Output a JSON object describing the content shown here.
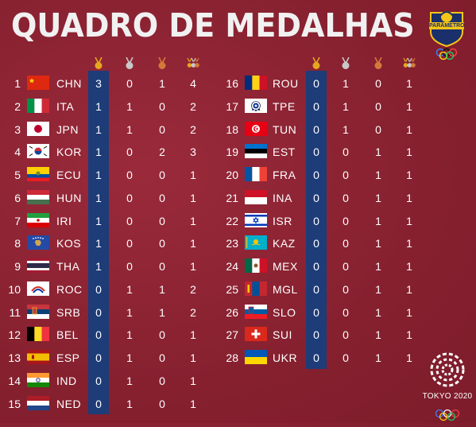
{
  "title": "QUADRO DE MEDALHAS",
  "logo": {
    "text": "PARÂMETRO"
  },
  "footer": {
    "event": "TOKYO 2020"
  },
  "colors": {
    "background": "#8e2434",
    "gold_highlight": "#1d3c78"
  },
  "columns": [
    "gold-icon",
    "silver-icon",
    "bronze-icon",
    "total-icon"
  ],
  "left_rows": [
    {
      "rank": "1",
      "code": "CHN",
      "gold": "3",
      "silver": "0",
      "bronze": "1",
      "total": "4",
      "flag": "chn"
    },
    {
      "rank": "2",
      "code": "ITA",
      "gold": "1",
      "silver": "1",
      "bronze": "0",
      "total": "2",
      "flag": "ita"
    },
    {
      "rank": "3",
      "code": "JPN",
      "gold": "1",
      "silver": "1",
      "bronze": "0",
      "total": "2",
      "flag": "jpn"
    },
    {
      "rank": "4",
      "code": "KOR",
      "gold": "1",
      "silver": "0",
      "bronze": "2",
      "total": "3",
      "flag": "kor"
    },
    {
      "rank": "5",
      "code": "ECU",
      "gold": "1",
      "silver": "0",
      "bronze": "0",
      "total": "1",
      "flag": "ecu"
    },
    {
      "rank": "6",
      "code": "HUN",
      "gold": "1",
      "silver": "0",
      "bronze": "0",
      "total": "1",
      "flag": "hun"
    },
    {
      "rank": "7",
      "code": "IRI",
      "gold": "1",
      "silver": "0",
      "bronze": "0",
      "total": "1",
      "flag": "iri"
    },
    {
      "rank": "8",
      "code": "KOS",
      "gold": "1",
      "silver": "0",
      "bronze": "0",
      "total": "1",
      "flag": "kos"
    },
    {
      "rank": "9",
      "code": "THA",
      "gold": "1",
      "silver": "0",
      "bronze": "0",
      "total": "1",
      "flag": "tha"
    },
    {
      "rank": "10",
      "code": "ROC",
      "gold": "0",
      "silver": "1",
      "bronze": "1",
      "total": "2",
      "flag": "roc"
    },
    {
      "rank": "11",
      "code": "SRB",
      "gold": "0",
      "silver": "1",
      "bronze": "1",
      "total": "2",
      "flag": "srb"
    },
    {
      "rank": "12",
      "code": "BEL",
      "gold": "0",
      "silver": "1",
      "bronze": "0",
      "total": "1",
      "flag": "bel"
    },
    {
      "rank": "13",
      "code": "ESP",
      "gold": "0",
      "silver": "1",
      "bronze": "0",
      "total": "1",
      "flag": "esp"
    },
    {
      "rank": "14",
      "code": "IND",
      "gold": "0",
      "silver": "1",
      "bronze": "0",
      "total": "1",
      "flag": "ind"
    },
    {
      "rank": "15",
      "code": "NED",
      "gold": "0",
      "silver": "1",
      "bronze": "0",
      "total": "1",
      "flag": "ned"
    }
  ],
  "right_rows": [
    {
      "rank": "16",
      "code": "ROU",
      "gold": "0",
      "silver": "1",
      "bronze": "0",
      "total": "1",
      "flag": "rou"
    },
    {
      "rank": "17",
      "code": "TPE",
      "gold": "0",
      "silver": "1",
      "bronze": "0",
      "total": "1",
      "flag": "tpe"
    },
    {
      "rank": "18",
      "code": "TUN",
      "gold": "0",
      "silver": "1",
      "bronze": "0",
      "total": "1",
      "flag": "tun"
    },
    {
      "rank": "19",
      "code": "EST",
      "gold": "0",
      "silver": "0",
      "bronze": "1",
      "total": "1",
      "flag": "est"
    },
    {
      "rank": "20",
      "code": "FRA",
      "gold": "0",
      "silver": "0",
      "bronze": "1",
      "total": "1",
      "flag": "fra"
    },
    {
      "rank": "21",
      "code": "INA",
      "gold": "0",
      "silver": "0",
      "bronze": "1",
      "total": "1",
      "flag": "ina"
    },
    {
      "rank": "22",
      "code": "ISR",
      "gold": "0",
      "silver": "0",
      "bronze": "1",
      "total": "1",
      "flag": "isr"
    },
    {
      "rank": "23",
      "code": "KAZ",
      "gold": "0",
      "silver": "0",
      "bronze": "1",
      "total": "1",
      "flag": "kaz"
    },
    {
      "rank": "24",
      "code": "MEX",
      "gold": "0",
      "silver": "0",
      "bronze": "1",
      "total": "1",
      "flag": "mex"
    },
    {
      "rank": "25",
      "code": "MGL",
      "gold": "0",
      "silver": "0",
      "bronze": "1",
      "total": "1",
      "flag": "mgl"
    },
    {
      "rank": "26",
      "code": "SLO",
      "gold": "0",
      "silver": "0",
      "bronze": "1",
      "total": "1",
      "flag": "slo"
    },
    {
      "rank": "27",
      "code": "SUI",
      "gold": "0",
      "silver": "0",
      "bronze": "1",
      "total": "1",
      "flag": "sui"
    },
    {
      "rank": "28",
      "code": "UKR",
      "gold": "0",
      "silver": "0",
      "bronze": "1",
      "total": "1",
      "flag": "ukr"
    }
  ]
}
